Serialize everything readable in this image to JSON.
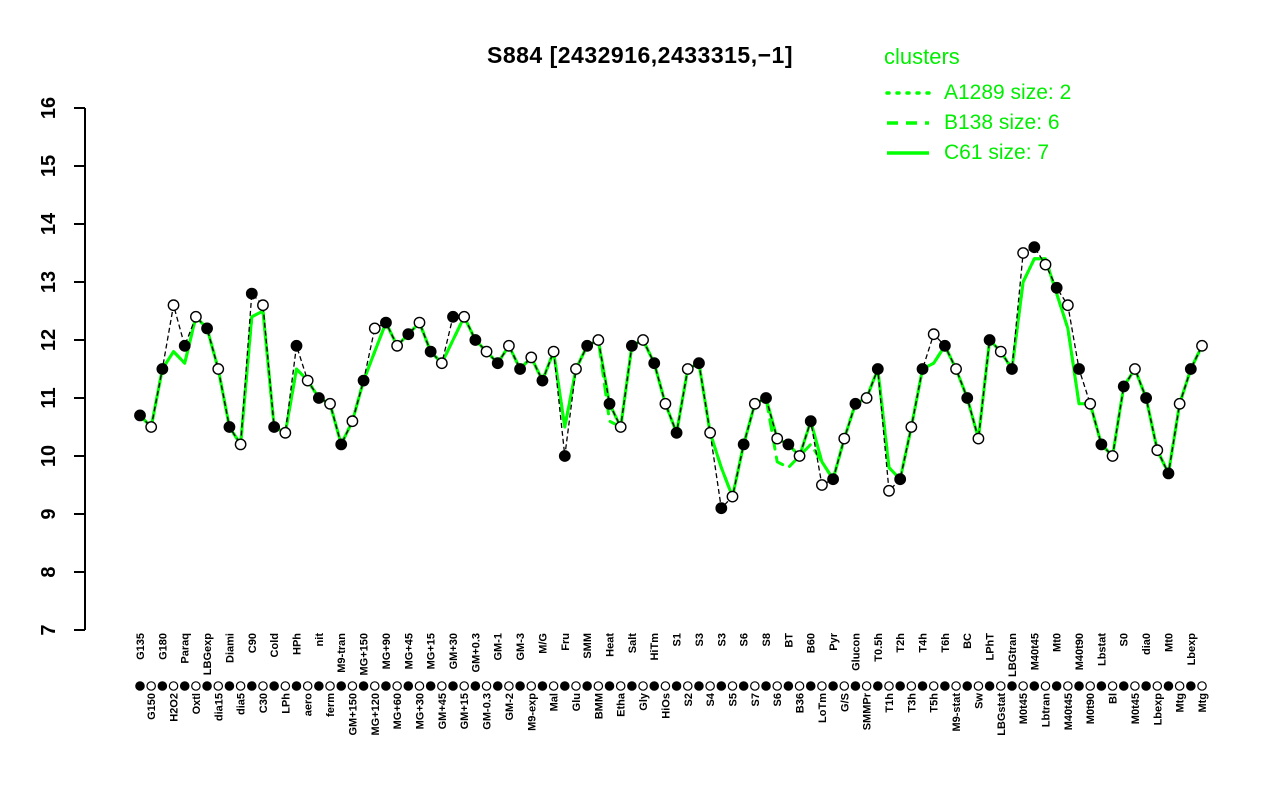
{
  "title": "S884 [2432916,2433315,−1]",
  "legend": {
    "title": "clusters"
  },
  "colors": {
    "cluster_green": "#00FF00",
    "legend_text_green": "#00EE00",
    "points_black": "#000000",
    "background": "#FFFFFF"
  },
  "chart_data": {
    "type": "line",
    "title": "S884 [2432916,2433315,−1]",
    "ylabel": "",
    "xlabel": "",
    "ylim": [
      7,
      16
    ],
    "y_ticks": [
      7,
      8,
      9,
      10,
      11,
      12,
      13,
      14,
      15,
      16
    ],
    "grid": false,
    "legend_position": "top-right",
    "legend_title": "clusters",
    "categories": [
      "G135",
      "G150",
      "G180",
      "H2O2",
      "Paraq",
      "Oxtl",
      "LBGexp",
      "dia15",
      "Diami",
      "dia5",
      "C90",
      "C30",
      "Cold",
      "LPh",
      "HPh",
      "aero",
      "nit",
      "ferm",
      "M9-tran",
      "GM+150",
      "MG+150",
      "MG+120",
      "MG+90",
      "MG+60",
      "MG+45",
      "MG+30",
      "MG+15",
      "GM+45",
      "GM+30",
      "GM+15",
      "GM+0.3",
      "GM-0.3",
      "GM-1",
      "GM-2",
      "GM-3",
      "M9-exp",
      "M/G",
      "Mal",
      "Fru",
      "Glu",
      "SMM",
      "BMM",
      "Heat",
      "Etha",
      "Salt",
      "Gly",
      "HiTm",
      "HiOs",
      "S1",
      "S2",
      "S3",
      "S4",
      "S3",
      "S5",
      "S6",
      "S7",
      "S8",
      "S6",
      "BT",
      "B36",
      "B60",
      "LoTm",
      "Pyr",
      "G/S",
      "Glucon",
      "SMMPr",
      "T0.5h",
      "T1h",
      "T2h",
      "T3h",
      "T4h",
      "T5h",
      "T6h",
      "M9-stat",
      "BC",
      "Sw",
      "LPhT",
      "LBGstat",
      "LBGtran",
      "M0t45",
      "M40t45",
      "Lbtran",
      "Mt0",
      "M40t45",
      "M40t90",
      "M0t90",
      "Lbstat",
      "Bl",
      "S0",
      "M0t45",
      "dia0",
      "Lbexp",
      "Mt0",
      "Mtg",
      "Lbexp",
      "Mtg"
    ],
    "points": {
      "name": "gene profile",
      "fill_pattern": "alternate",
      "values": [
        10.7,
        10.5,
        11.5,
        12.6,
        11.9,
        12.4,
        12.2,
        11.5,
        10.5,
        10.2,
        12.8,
        12.6,
        10.5,
        10.4,
        11.9,
        11.3,
        11.0,
        10.9,
        10.2,
        10.6,
        11.3,
        12.2,
        12.3,
        11.9,
        12.1,
        12.3,
        11.8,
        11.6,
        12.4,
        12.4,
        12.0,
        11.8,
        11.6,
        11.9,
        11.5,
        11.7,
        11.3,
        11.8,
        10.0,
        11.5,
        11.9,
        12.0,
        10.9,
        10.5,
        11.9,
        12.0,
        11.6,
        10.9,
        10.4,
        11.5,
        11.6,
        10.4,
        9.1,
        9.3,
        10.2,
        10.9,
        11.0,
        10.3,
        10.2,
        10.0,
        10.6,
        9.5,
        9.6,
        10.3,
        10.9,
        11.0,
        11.5,
        9.4,
        9.6,
        10.5,
        11.5,
        12.1,
        11.9,
        11.5,
        11.0,
        10.3,
        12.0,
        11.8,
        11.5,
        13.5,
        13.6,
        13.3,
        12.9,
        12.6,
        11.5,
        10.9,
        10.2,
        10.0,
        11.2,
        11.5,
        11.0,
        10.1,
        9.7,
        10.9,
        11.5,
        11.9
      ]
    },
    "series": [
      {
        "name": "A1289 size: 2",
        "style": "dotted",
        "values": [
          10.7,
          10.5,
          11.5,
          11.8,
          11.6,
          12.4,
          12.2,
          11.5,
          10.5,
          10.2,
          12.4,
          12.5,
          10.5,
          10.4,
          11.5,
          11.3,
          11.0,
          10.9,
          10.2,
          10.6,
          11.3,
          11.8,
          12.3,
          11.9,
          12.1,
          12.3,
          11.8,
          11.6,
          12.0,
          12.4,
          12.0,
          11.8,
          11.6,
          11.9,
          11.5,
          11.7,
          11.3,
          11.8,
          10.5,
          11.5,
          11.9,
          12.0,
          10.9,
          10.5,
          11.9,
          12.0,
          11.6,
          10.9,
          10.4,
          11.5,
          11.6,
          10.4,
          9.8,
          9.3,
          10.2,
          10.9,
          11.0,
          10.3,
          10.2,
          10.0,
          10.6,
          9.9,
          9.6,
          10.3,
          10.9,
          11.0,
          11.5,
          9.8,
          9.6,
          10.5,
          11.5,
          11.6,
          11.9,
          11.5,
          11.0,
          10.3,
          12.0,
          11.8,
          11.5,
          13.0,
          13.4,
          13.4,
          12.8,
          12.2,
          10.9,
          10.9,
          10.2,
          10.0,
          11.2,
          11.5,
          11.0,
          10.1,
          9.7,
          10.9,
          11.5,
          11.9
        ]
      },
      {
        "name": "B138 size: 6",
        "style": "dashed",
        "values": [
          10.7,
          10.5,
          11.5,
          11.8,
          11.6,
          12.4,
          12.2,
          11.5,
          10.5,
          10.2,
          12.4,
          12.5,
          10.5,
          10.4,
          11.5,
          11.3,
          11.0,
          10.9,
          10.2,
          10.6,
          11.3,
          11.8,
          12.3,
          11.9,
          12.1,
          12.3,
          11.8,
          11.6,
          12.0,
          12.4,
          12.0,
          11.8,
          11.6,
          11.9,
          11.5,
          11.7,
          11.3,
          11.8,
          10.5,
          11.5,
          11.9,
          12.0,
          10.6,
          10.5,
          11.9,
          12.0,
          11.6,
          10.9,
          10.4,
          11.5,
          11.6,
          10.4,
          9.8,
          9.3,
          10.2,
          10.9,
          11.0,
          9.9,
          9.8,
          10.0,
          10.2,
          9.9,
          9.6,
          10.3,
          10.9,
          11.0,
          11.5,
          9.8,
          9.6,
          10.5,
          11.5,
          11.6,
          11.9,
          11.5,
          11.0,
          10.3,
          12.0,
          11.8,
          11.5,
          13.0,
          13.4,
          13.4,
          12.8,
          12.2,
          10.9,
          10.9,
          10.2,
          10.0,
          11.2,
          11.5,
          11.0,
          10.1,
          9.7,
          10.9,
          11.5,
          11.9
        ]
      },
      {
        "name": "C61 size: 7",
        "style": "solid",
        "values": [
          10.7,
          10.5,
          11.5,
          11.8,
          11.6,
          12.4,
          12.2,
          11.5,
          10.5,
          10.2,
          12.4,
          12.5,
          10.5,
          10.4,
          11.5,
          11.3,
          11.0,
          10.9,
          10.2,
          10.6,
          11.3,
          11.8,
          12.3,
          11.9,
          12.1,
          12.3,
          11.8,
          11.6,
          12.0,
          12.4,
          12.0,
          11.8,
          11.6,
          11.9,
          11.5,
          11.7,
          11.3,
          11.8,
          10.5,
          11.5,
          11.9,
          12.0,
          10.9,
          10.5,
          11.9,
          12.0,
          11.6,
          10.9,
          10.4,
          11.5,
          11.6,
          10.4,
          9.8,
          9.3,
          10.2,
          10.9,
          11.0,
          10.3,
          10.2,
          10.0,
          10.6,
          9.9,
          9.6,
          10.3,
          10.9,
          11.0,
          11.5,
          9.8,
          9.6,
          10.5,
          11.5,
          11.6,
          11.9,
          11.5,
          11.0,
          10.3,
          12.0,
          11.8,
          11.5,
          13.0,
          13.4,
          13.4,
          12.8,
          12.2,
          10.9,
          10.9,
          10.2,
          10.0,
          11.2,
          11.5,
          11.0,
          10.1,
          9.7,
          10.9,
          11.5,
          11.9
        ]
      }
    ]
  }
}
